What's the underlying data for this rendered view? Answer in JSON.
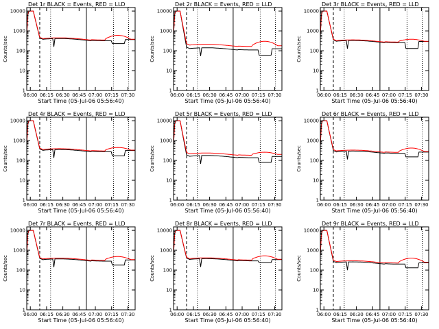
{
  "colors": {
    "events": "#000000",
    "lld": "#ff0000",
    "background": "#ffffff"
  },
  "chart_data": [
    {
      "type": "line",
      "title": "Det 1r BLACK = Events, RED = LLD",
      "xlabel": "Start Time (05-Jul-06 05:56:40)",
      "ylabel": "Counts/sec",
      "xticks": [
        "06:00",
        "06:15",
        "06:30",
        "06:45",
        "07:00",
        "07:15",
        "07:30"
      ],
      "yticks": [
        "1",
        "10",
        "100",
        "1000",
        "10000"
      ],
      "xlim_minutes_after_06_00": [
        0,
        100
      ],
      "ylim": [
        1,
        15000
      ],
      "ylog": true,
      "plateau": {
        "events": 350,
        "lld": 380
      },
      "events_dip_late": 230,
      "lld_bump_late": 600
    },
    {
      "type": "line",
      "title": "Det 2r BLACK = Events, RED = LLD",
      "xlabel": "Start Time (05-Jul-06 05:56:40)",
      "ylabel": "Counts/sec",
      "xticks": [
        "06:00",
        "06:15",
        "06:30",
        "06:45",
        "07:00",
        "07:15",
        "07:30"
      ],
      "yticks": [
        "1",
        "10",
        "100",
        "1000",
        "10000"
      ],
      "xlim_minutes_after_06_00": [
        0,
        100
      ],
      "ylim": [
        1,
        15000
      ],
      "ylog": true,
      "plateau": {
        "events": 120,
        "lld": 180
      },
      "events_dip_late": 60,
      "lld_bump_late": 300
    },
    {
      "type": "line",
      "title": "Det 3r BLACK = Events, RED = LLD",
      "xlabel": "Start Time (05-Jul-06 05:56:40)",
      "ylabel": "Counts/sec",
      "xticks": [
        "06:00",
        "06:15",
        "06:30",
        "06:45",
        "07:00",
        "07:15",
        "07:30"
      ],
      "yticks": [
        "1",
        "10",
        "100",
        "1000",
        "10000"
      ],
      "xlim_minutes_after_06_00": [
        0,
        100
      ],
      "ylim": [
        1,
        15000
      ],
      "ylog": true,
      "plateau": {
        "events": 280,
        "lld": 300
      },
      "events_dip_late": 130,
      "lld_bump_late": 380
    },
    {
      "type": "line",
      "title": "Det 4r BLACK = Events, RED = LLD",
      "xlabel": "Start Time (05-Jul-06 05:56:40)",
      "ylabel": "Counts/sec",
      "xticks": [
        "06:00",
        "06:15",
        "06:30",
        "06:45",
        "07:00",
        "07:15",
        "07:30"
      ],
      "yticks": [
        "1",
        "10",
        "100",
        "1000",
        "10000"
      ],
      "xlim_minutes_after_06_00": [
        0,
        100
      ],
      "ylim": [
        1,
        15000
      ],
      "ylog": true,
      "plateau": {
        "events": 300,
        "lld": 330
      },
      "events_dip_late": 170,
      "lld_bump_late": 450
    },
    {
      "type": "line",
      "title": "Det 5r BLACK = Events, RED = LLD",
      "xlabel": "Start Time (05-Jul-06 05:56:40)",
      "ylabel": "Counts/sec",
      "xticks": [
        "06:00",
        "06:15",
        "06:30",
        "06:45",
        "07:00",
        "07:15",
        "07:30"
      ],
      "yticks": [
        "1",
        "10",
        "100",
        "1000",
        "10000"
      ],
      "xlim_minutes_after_06_00": [
        0,
        100
      ],
      "ylim": [
        1,
        15000
      ],
      "ylog": true,
      "plateau": {
        "events": 150,
        "lld": 200
      },
      "events_dip_late": 80,
      "lld_bump_late": 260
    },
    {
      "type": "line",
      "title": "Det 6r BLACK = Events, RED = LLD",
      "xlabel": "Start Time (05-Jul-06 05:56:40)",
      "ylabel": "Counts/sec",
      "xticks": [
        "06:00",
        "06:15",
        "06:30",
        "06:45",
        "07:00",
        "07:15",
        "07:30"
      ],
      "yticks": [
        "1",
        "10",
        "100",
        "1000",
        "10000"
      ],
      "xlim_minutes_after_06_00": [
        0,
        100
      ],
      "ylim": [
        1,
        15000
      ],
      "ylog": true,
      "plateau": {
        "events": 250,
        "lld": 280
      },
      "events_dip_late": 150,
      "lld_bump_late": 420
    },
    {
      "type": "line",
      "title": "Det 7r BLACK = Events, RED = LLD",
      "xlabel": "Start Time (05-Jul-06 05:56:40)",
      "ylabel": "Counts/sec",
      "xticks": [
        "06:00",
        "06:15",
        "06:30",
        "06:45",
        "07:00",
        "07:15",
        "07:30"
      ],
      "yticks": [
        "1",
        "10",
        "100",
        "1000",
        "10000"
      ],
      "xlim_minutes_after_06_00": [
        0,
        100
      ],
      "ylim": [
        1,
        15000
      ],
      "ylog": true,
      "plateau": {
        "events": 310,
        "lld": 340
      },
      "events_dip_late": 180,
      "lld_bump_late": 480
    },
    {
      "type": "line",
      "title": "Det 8r BLACK = Events, RED = LLD",
      "xlabel": "Start Time (05-Jul-06 05:56:40)",
      "ylabel": "Counts/sec",
      "xticks": [
        "06:00",
        "06:15",
        "06:30",
        "06:45",
        "07:00",
        "07:15",
        "07:30"
      ],
      "yticks": [
        "1",
        "10",
        "100",
        "1000",
        "10000"
      ],
      "xlim_minutes_after_06_00": [
        0,
        100
      ],
      "ylim": [
        1,
        15000
      ],
      "ylog": true,
      "plateau": {
        "events": 320,
        "lld": 350
      },
      "events_dip_late": 240,
      "lld_bump_late": 520
    },
    {
      "type": "line",
      "title": "Det 9r BLACK = Events, RED = LLD",
      "xlabel": "Start Time (05-Jul-06 05:56:40)",
      "ylabel": "Counts/sec",
      "xticks": [
        "06:00",
        "06:15",
        "06:30",
        "06:45",
        "07:00",
        "07:15",
        "07:30"
      ],
      "yticks": [
        "1",
        "10",
        "100",
        "1000",
        "10000"
      ],
      "xlim_minutes_after_06_00": [
        0,
        100
      ],
      "ylim": [
        1,
        15000
      ],
      "ylog": true,
      "plateau": {
        "events": 220,
        "lld": 250
      },
      "events_dip_late": 130,
      "lld_bump_late": 400
    }
  ]
}
